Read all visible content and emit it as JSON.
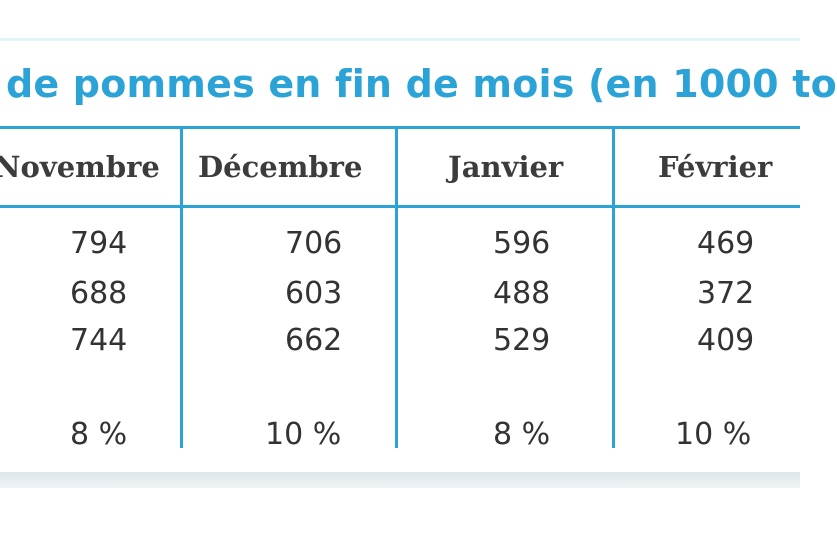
{
  "title": "de pommes en fin de mois (en 1000 to",
  "columns": [
    "Novembre",
    "Décembre",
    "Janvier",
    "Février"
  ],
  "rows": [
    [
      "794",
      "706",
      "596",
      "469"
    ],
    [
      "688",
      "603",
      "488",
      "372"
    ],
    [
      "744",
      "662",
      "529",
      "409"
    ],
    [
      "8 %",
      "10 %",
      "8 %",
      "10 %"
    ]
  ],
  "colors": {
    "accent": "#2ba3d6",
    "text": "#333333"
  }
}
